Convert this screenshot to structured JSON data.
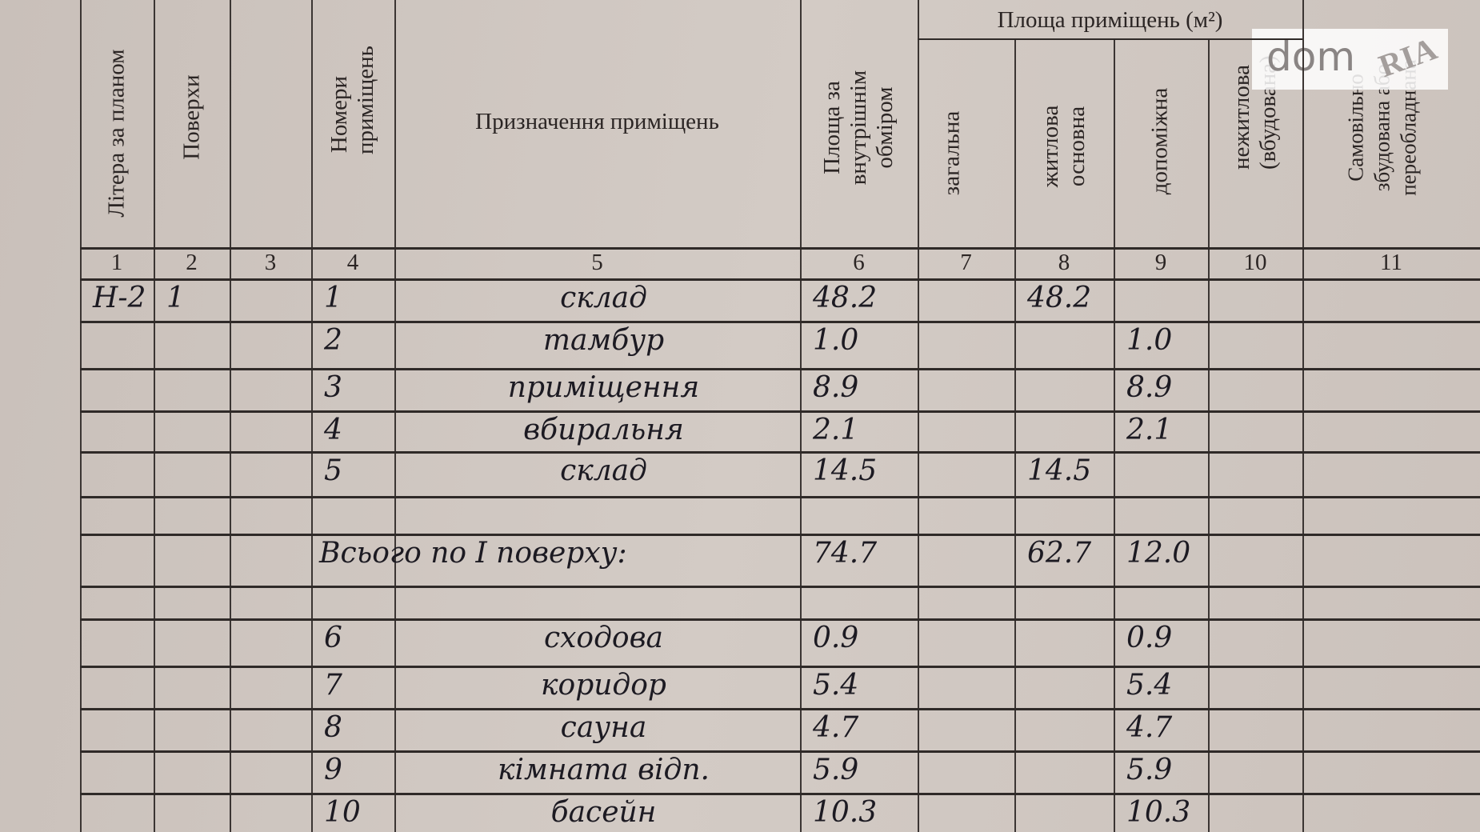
{
  "header": {
    "col1": "Літера за планом",
    "col2": "Поверхи",
    "col4": "Номери приміщень",
    "col5": "Призначення приміщень",
    "col6": "Площа за внутрішнім обміром",
    "area_group": "Площа приміщень (м²)",
    "col7": "загальна",
    "col8": "житлова основна",
    "col9": "допоміжна",
    "col10": "нежитлова (вбудована)",
    "col11": "Самовільно збудована або переобладнана",
    "numbers": [
      "1",
      "2",
      "3",
      "4",
      "5",
      "6",
      "7",
      "8",
      "9",
      "10",
      "11"
    ]
  },
  "rows": [
    {
      "litera": "Н-2",
      "floor": "1",
      "no": "1",
      "purpose": "склад",
      "area": "48.2",
      "total": "",
      "living": "48.2",
      "aux": ""
    },
    {
      "litera": "",
      "floor": "",
      "no": "2",
      "purpose": "тамбур",
      "area": "1.0",
      "total": "",
      "living": "",
      "aux": "1.0"
    },
    {
      "litera": "",
      "floor": "",
      "no": "3",
      "purpose": "приміщення",
      "area": "8.9",
      "total": "",
      "living": "",
      "aux": "8.9"
    },
    {
      "litera": "",
      "floor": "",
      "no": "4",
      "purpose": "вбиральня",
      "area": "2.1",
      "total": "",
      "living": "",
      "aux": "2.1"
    },
    {
      "litera": "",
      "floor": "",
      "no": "5",
      "purpose": "склад",
      "area": "14.5",
      "total": "",
      "living": "14.5",
      "aux": ""
    },
    {
      "litera": "",
      "floor": "",
      "no": "",
      "purpose": "",
      "area": "",
      "total": "",
      "living": "",
      "aux": ""
    },
    {
      "litera": "",
      "floor": "",
      "no": "",
      "purpose": "Всього по I поверху:",
      "area": "74.7",
      "total": "",
      "living": "62.7",
      "aux": "12.0",
      "summary": true
    },
    {
      "litera": "",
      "floor": "",
      "no": "",
      "purpose": "",
      "area": "",
      "total": "",
      "living": "",
      "aux": ""
    },
    {
      "litera": "",
      "floor": "",
      "no": "6",
      "purpose": "сходова",
      "area": "0.9",
      "total": "",
      "living": "",
      "aux": "0.9"
    },
    {
      "litera": "",
      "floor": "",
      "no": "7",
      "purpose": "коридор",
      "area": "5.4",
      "total": "",
      "living": "",
      "aux": "5.4"
    },
    {
      "litera": "",
      "floor": "",
      "no": "8",
      "purpose": "сауна",
      "area": "4.7",
      "total": "",
      "living": "",
      "aux": "4.7"
    },
    {
      "litera": "",
      "floor": "",
      "no": "9",
      "purpose": "кімната відп.",
      "area": "5.9",
      "total": "",
      "living": "",
      "aux": "5.9"
    },
    {
      "litera": "",
      "floor": "",
      "no": "10",
      "purpose": "басейн",
      "area": "10.3",
      "total": "",
      "living": "",
      "aux": "10.3"
    }
  ],
  "watermark": {
    "text": "dom RIA"
  }
}
